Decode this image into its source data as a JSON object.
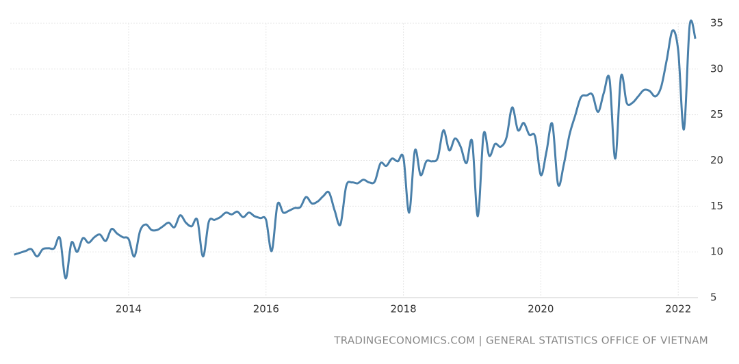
{
  "chart_data": {
    "type": "line",
    "source": "TRADINGECONOMICS.COM | GENERAL STATISTICS OFFICE OF VIETNAM",
    "x": [
      2012.333,
      2012.417,
      2012.5,
      2012.583,
      2012.667,
      2012.75,
      2012.833,
      2012.917,
      2013,
      2013.083,
      2013.167,
      2013.25,
      2013.333,
      2013.417,
      2013.5,
      2013.583,
      2013.667,
      2013.75,
      2013.833,
      2013.917,
      2014,
      2014.083,
      2014.167,
      2014.25,
      2014.333,
      2014.417,
      2014.5,
      2014.583,
      2014.667,
      2014.75,
      2014.833,
      2014.917,
      2015,
      2015.083,
      2015.167,
      2015.25,
      2015.333,
      2015.417,
      2015.5,
      2015.583,
      2015.667,
      2015.75,
      2015.833,
      2015.917,
      2016,
      2016.083,
      2016.167,
      2016.25,
      2016.333,
      2016.417,
      2016.5,
      2016.583,
      2016.667,
      2016.75,
      2016.833,
      2016.917,
      2017,
      2017.083,
      2017.167,
      2017.25,
      2017.333,
      2017.417,
      2017.5,
      2017.583,
      2017.667,
      2017.75,
      2017.833,
      2017.917,
      2018,
      2018.083,
      2018.167,
      2018.25,
      2018.333,
      2018.417,
      2018.5,
      2018.583,
      2018.667,
      2018.75,
      2018.833,
      2018.917,
      2019,
      2019.083,
      2019.167,
      2019.25,
      2019.333,
      2019.417,
      2019.5,
      2019.583,
      2019.667,
      2019.75,
      2019.833,
      2019.917,
      2020,
      2020.083,
      2020.167,
      2020.25,
      2020.333,
      2020.417,
      2020.5,
      2020.583,
      2020.667,
      2020.75,
      2020.833,
      2020.917,
      2021,
      2021.083,
      2021.167,
      2021.25,
      2021.333,
      2021.417,
      2021.5,
      2021.583,
      2021.667,
      2021.75,
      2021.833,
      2021.917,
      2022,
      2022.083,
      2022.167,
      2022.25
    ],
    "series": [
      {
        "name": "Vietnam",
        "color": "#4a80aa",
        "values": [
          9.7,
          9.9,
          10.1,
          10.3,
          9.5,
          10.3,
          10.4,
          10.4,
          11.5,
          7.1,
          11.0,
          10.0,
          11.5,
          11.0,
          11.6,
          11.9,
          11.2,
          12.5,
          12.0,
          11.6,
          11.4,
          9.5,
          12.3,
          13.0,
          12.4,
          12.4,
          12.8,
          13.2,
          12.7,
          14.0,
          13.2,
          12.8,
          13.5,
          9.5,
          13.3,
          13.5,
          13.8,
          14.3,
          14.1,
          14.4,
          13.8,
          14.3,
          13.9,
          13.7,
          13.5,
          10.1,
          15.2,
          14.3,
          14.5,
          14.8,
          14.9,
          16.0,
          15.3,
          15.5,
          16.1,
          16.5,
          14.5,
          13.0,
          17.2,
          17.6,
          17.5,
          17.9,
          17.6,
          17.7,
          19.7,
          19.4,
          20.2,
          19.9,
          20.3,
          14.3,
          21.1,
          18.4,
          19.9,
          19.9,
          20.3,
          23.3,
          21.1,
          22.4,
          21.5,
          19.7,
          22.1,
          13.9,
          22.9,
          20.5,
          21.8,
          21.5,
          22.5,
          25.8,
          23.3,
          24.1,
          22.8,
          22.6,
          18.4,
          21.0,
          24.0,
          17.4,
          19.5,
          22.8,
          24.9,
          26.9,
          27.1,
          27.2,
          25.3,
          27.4,
          28.9,
          20.2,
          29.2,
          26.3,
          26.3,
          27.0,
          27.7,
          27.6,
          27.0,
          28.0,
          31.0,
          34.2,
          32.0,
          23.4,
          34.8,
          33.3
        ]
      }
    ],
    "xlim": [
      2012.277,
      2022.287
    ],
    "xticks": [
      2014,
      2016,
      2018,
      2020,
      2022
    ],
    "ylim": [
      5,
      35
    ],
    "yticks": [
      5,
      10,
      15,
      20,
      25,
      30,
      35
    ],
    "grid": true
  }
}
